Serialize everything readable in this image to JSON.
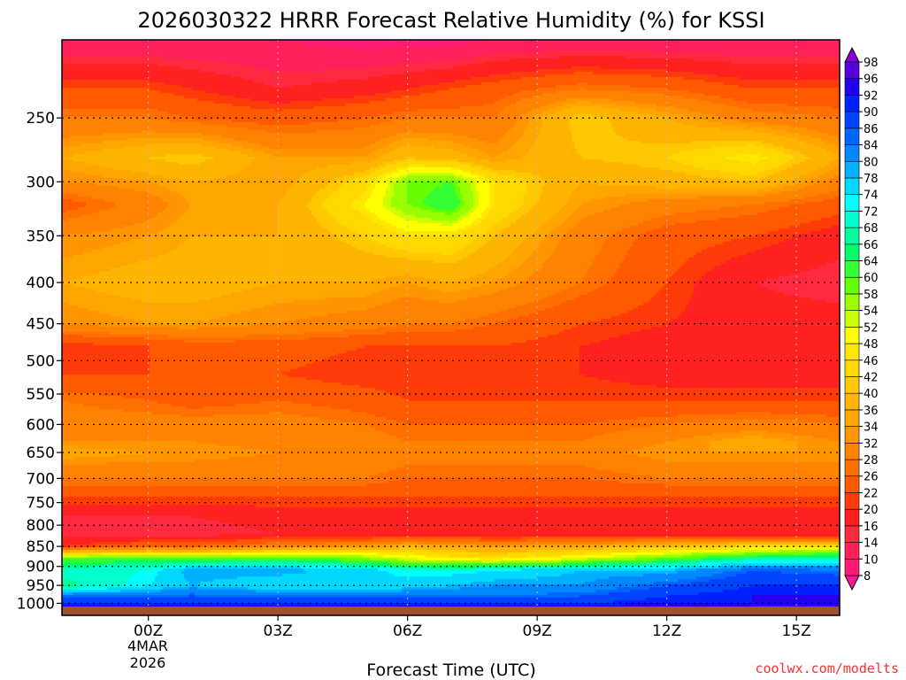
{
  "chart_data": {
    "type": "heatmap",
    "title": "2026030322 HRRR Forecast Relative Humidity (%) for KSSI",
    "xlabel": "Forecast Time (UTC)",
    "ylabel": "",
    "x_ticks": [
      "00Z",
      "03Z",
      "06Z",
      "09Z",
      "12Z",
      "15Z"
    ],
    "x_tick_hours": [
      0,
      3,
      6,
      9,
      12,
      15
    ],
    "x_range_hours": [
      -2,
      16
    ],
    "date_label": [
      "4MAR",
      "2026"
    ],
    "y_ticks": [
      250,
      300,
      350,
      400,
      450,
      500,
      550,
      600,
      650,
      700,
      750,
      800,
      850,
      900,
      950,
      1000
    ],
    "y_range_hpa": [
      200,
      1035
    ],
    "y_scale": "log",
    "grid": true,
    "colorbar": {
      "placement": "right",
      "levels": [
        8,
        10,
        14,
        16,
        20,
        22,
        26,
        28,
        32,
        34,
        36,
        40,
        42,
        46,
        48,
        52,
        54,
        58,
        60,
        64,
        66,
        68,
        72,
        74,
        78,
        80,
        84,
        86,
        90,
        92,
        96,
        98
      ],
      "colors": [
        "#ff1493",
        "#ff1a75",
        "#ff1f5a",
        "#ff2a40",
        "#ff2020",
        "#ff3b0a",
        "#ff5a00",
        "#ff7000",
        "#ff8200",
        "#ff9500",
        "#ffa500",
        "#ffb400",
        "#ffc800",
        "#ffd800",
        "#ffe800",
        "#ffff00",
        "#ccff00",
        "#99ff00",
        "#66ff00",
        "#33ff33",
        "#00ff66",
        "#00ff99",
        "#00ffcc",
        "#00ffff",
        "#00d8ff",
        "#00b0ff",
        "#0088ff",
        "#0066ff",
        "#0044ff",
        "#0022ff",
        "#2200ee",
        "#5500dd",
        "#8800dd"
      ]
    },
    "profile_pressure_hpa": [
      200,
      230,
      250,
      280,
      300,
      320,
      350,
      400,
      450,
      480,
      520,
      560,
      600,
      630,
      650,
      700,
      740,
      780,
      820,
      850,
      880,
      910,
      950,
      980,
      1000,
      1020
    ],
    "rh_profiles": [
      {
        "hour": -2,
        "values": [
          10,
          22,
          28,
          36,
          32,
          24,
          32,
          36,
          32,
          20,
          22,
          28,
          30,
          32,
          36,
          28,
          22,
          16,
          14,
          20,
          60,
          70,
          66,
          84,
          90,
          98
        ]
      },
      {
        "hour": 0,
        "values": [
          10,
          22,
          28,
          40,
          34,
          30,
          34,
          38,
          34,
          22,
          22,
          26,
          30,
          32,
          34,
          28,
          22,
          16,
          14,
          26,
          62,
          72,
          74,
          84,
          90,
          98
        ]
      },
      {
        "hour": 1,
        "values": [
          10,
          20,
          26,
          42,
          36,
          34,
          36,
          38,
          34,
          24,
          22,
          24,
          30,
          32,
          34,
          28,
          22,
          16,
          14,
          26,
          60,
          80,
          78,
          86,
          90,
          98
        ]
      },
      {
        "hour": 3,
        "values": [
          10,
          16,
          24,
          34,
          34,
          36,
          36,
          36,
          32,
          24,
          22,
          26,
          30,
          30,
          32,
          28,
          22,
          18,
          16,
          30,
          62,
          80,
          74,
          84,
          90,
          98
        ]
      },
      {
        "hour": 5,
        "values": [
          8,
          18,
          26,
          34,
          44,
          48,
          42,
          36,
          30,
          22,
          20,
          24,
          28,
          30,
          32,
          28,
          22,
          18,
          16,
          34,
          58,
          76,
          74,
          84,
          90,
          98
        ]
      },
      {
        "hour": 6,
        "values": [
          8,
          20,
          28,
          40,
          58,
          58,
          46,
          34,
          28,
          22,
          20,
          22,
          26,
          28,
          30,
          26,
          22,
          18,
          16,
          38,
          52,
          72,
          76,
          84,
          90,
          98
        ]
      },
      {
        "hour": 7,
        "values": [
          8,
          22,
          28,
          38,
          60,
          64,
          46,
          36,
          28,
          22,
          20,
          22,
          26,
          28,
          30,
          26,
          22,
          18,
          16,
          36,
          48,
          72,
          78,
          84,
          90,
          98
        ]
      },
      {
        "hour": 8,
        "values": [
          10,
          24,
          28,
          34,
          46,
          46,
          40,
          34,
          26,
          22,
          20,
          22,
          26,
          28,
          30,
          26,
          22,
          18,
          16,
          34,
          46,
          74,
          80,
          84,
          90,
          98
        ]
      },
      {
        "hour": 10,
        "values": [
          10,
          28,
          42,
          40,
          36,
          34,
          30,
          28,
          22,
          20,
          20,
          22,
          26,
          28,
          30,
          26,
          22,
          18,
          16,
          36,
          52,
          78,
          80,
          86,
          90,
          98
        ]
      },
      {
        "hour": 12,
        "values": [
          10,
          26,
          36,
          42,
          38,
          30,
          24,
          22,
          20,
          18,
          18,
          22,
          28,
          32,
          34,
          28,
          22,
          18,
          16,
          40,
          60,
          78,
          86,
          90,
          92,
          98
        ]
      },
      {
        "hour": 14,
        "values": [
          10,
          22,
          30,
          48,
          40,
          28,
          22,
          16,
          18,
          18,
          18,
          22,
          30,
          36,
          34,
          28,
          22,
          18,
          16,
          44,
          68,
          86,
          90,
          92,
          92,
          98
        ]
      },
      {
        "hour": 16,
        "values": [
          10,
          22,
          28,
          36,
          30,
          24,
          18,
          14,
          18,
          18,
          18,
          22,
          28,
          32,
          34,
          28,
          22,
          18,
          16,
          46,
          70,
          84,
          90,
          92,
          92,
          98
        ]
      }
    ],
    "terrain_band_color": "#a0522d"
  },
  "credit": "coolwx.com/modelts"
}
